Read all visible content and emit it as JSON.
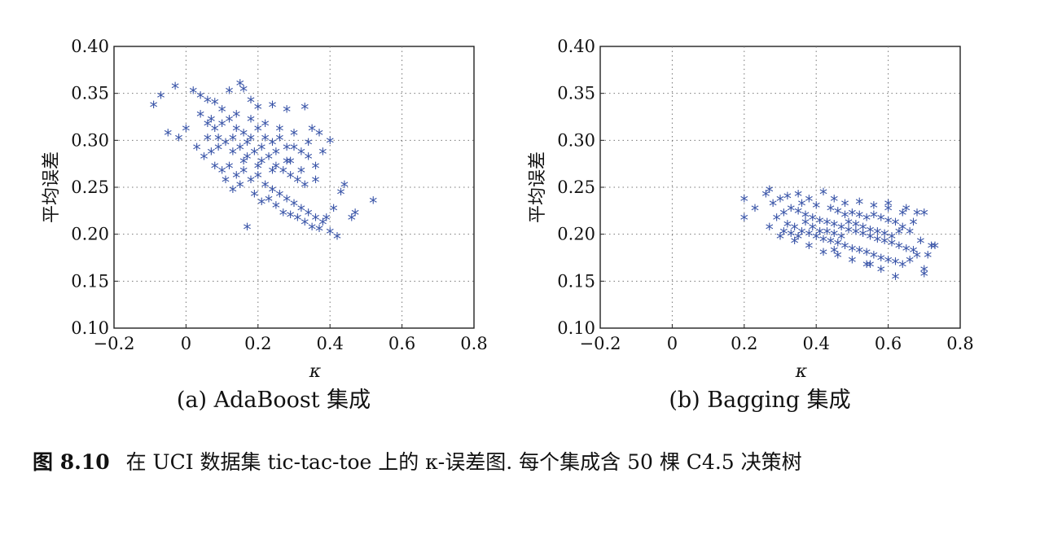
{
  "chart_data": [
    {
      "type": "scatter",
      "subcaption": "(a) AdaBoost 集成",
      "xlabel": "κ",
      "ylabel": "平均误差",
      "xlim": [
        -0.2,
        0.8
      ],
      "ylim": [
        0.1,
        0.4
      ],
      "xticks": [
        "−0.2",
        "0",
        "0.2",
        "0.4",
        "0.6",
        "0.8"
      ],
      "yticks": [
        "0.10",
        "0.15",
        "0.20",
        "0.25",
        "0.30",
        "0.35",
        "0.40"
      ],
      "grid": true,
      "marker": "*",
      "color": "#3a55a8",
      "points": [
        [
          -0.09,
          0.335
        ],
        [
          -0.07,
          0.345
        ],
        [
          -0.03,
          0.355
        ],
        [
          -0.02,
          0.3
        ],
        [
          -0.05,
          0.305
        ],
        [
          0.0,
          0.31
        ],
        [
          0.02,
          0.35
        ],
        [
          0.04,
          0.345
        ],
        [
          0.06,
          0.34
        ],
        [
          0.08,
          0.338
        ],
        [
          0.1,
          0.33
        ],
        [
          0.12,
          0.35
        ],
        [
          0.15,
          0.358
        ],
        [
          0.16,
          0.352
        ],
        [
          0.18,
          0.34
        ],
        [
          0.2,
          0.333
        ],
        [
          0.24,
          0.335
        ],
        [
          0.28,
          0.33
        ],
        [
          0.33,
          0.333
        ],
        [
          0.35,
          0.31
        ],
        [
          0.37,
          0.305
        ],
        [
          0.4,
          0.297
        ],
        [
          0.03,
          0.29
        ],
        [
          0.06,
          0.3
        ],
        [
          0.08,
          0.31
        ],
        [
          0.1,
          0.315
        ],
        [
          0.12,
          0.32
        ],
        [
          0.14,
          0.31
        ],
        [
          0.16,
          0.305
        ],
        [
          0.18,
          0.3
        ],
        [
          0.2,
          0.31
        ],
        [
          0.22,
          0.3
        ],
        [
          0.24,
          0.295
        ],
        [
          0.26,
          0.3
        ],
        [
          0.28,
          0.29
        ],
        [
          0.3,
          0.29
        ],
        [
          0.32,
          0.285
        ],
        [
          0.34,
          0.28
        ],
        [
          0.36,
          0.27
        ],
        [
          0.05,
          0.28
        ],
        [
          0.07,
          0.285
        ],
        [
          0.09,
          0.29
        ],
        [
          0.11,
          0.295
        ],
        [
          0.13,
          0.285
        ],
        [
          0.15,
          0.29
        ],
        [
          0.17,
          0.28
        ],
        [
          0.19,
          0.285
        ],
        [
          0.21,
          0.275
        ],
        [
          0.23,
          0.28
        ],
        [
          0.25,
          0.27
        ],
        [
          0.27,
          0.265
        ],
        [
          0.29,
          0.26
        ],
        [
          0.31,
          0.255
        ],
        [
          0.33,
          0.25
        ],
        [
          0.08,
          0.27
        ],
        [
          0.1,
          0.265
        ],
        [
          0.12,
          0.27
        ],
        [
          0.14,
          0.26
        ],
        [
          0.16,
          0.265
        ],
        [
          0.18,
          0.255
        ],
        [
          0.2,
          0.26
        ],
        [
          0.22,
          0.25
        ],
        [
          0.24,
          0.245
        ],
        [
          0.26,
          0.24
        ],
        [
          0.28,
          0.235
        ],
        [
          0.3,
          0.23
        ],
        [
          0.32,
          0.225
        ],
        [
          0.34,
          0.22
        ],
        [
          0.36,
          0.215
        ],
        [
          0.38,
          0.21
        ],
        [
          0.4,
          0.2
        ],
        [
          0.42,
          0.195
        ],
        [
          0.44,
          0.25
        ],
        [
          0.46,
          0.215
        ],
        [
          0.47,
          0.22
        ],
        [
          0.52,
          0.233
        ],
        [
          0.17,
          0.205
        ],
        [
          0.21,
          0.232
        ],
        [
          0.25,
          0.228
        ],
        [
          0.29,
          0.218
        ],
        [
          0.33,
          0.21
        ],
        [
          0.37,
          0.203
        ],
        [
          0.39,
          0.215
        ],
        [
          0.41,
          0.225
        ],
        [
          0.43,
          0.242
        ],
        [
          0.13,
          0.245
        ],
        [
          0.15,
          0.25
        ],
        [
          0.19,
          0.24
        ],
        [
          0.23,
          0.235
        ],
        [
          0.27,
          0.22
        ],
        [
          0.31,
          0.215
        ],
        [
          0.35,
          0.205
        ],
        [
          0.11,
          0.255
        ],
        [
          0.09,
          0.3
        ],
        [
          0.07,
          0.32
        ],
        [
          0.13,
          0.3
        ],
        [
          0.17,
          0.295
        ],
        [
          0.21,
          0.29
        ],
        [
          0.25,
          0.285
        ],
        [
          0.29,
          0.275
        ],
        [
          0.04,
          0.325
        ],
        [
          0.06,
          0.315
        ],
        [
          0.14,
          0.325
        ],
        [
          0.18,
          0.32
        ],
        [
          0.22,
          0.315
        ],
        [
          0.26,
          0.31
        ],
        [
          0.3,
          0.305
        ],
        [
          0.34,
          0.295
        ],
        [
          0.38,
          0.285
        ],
        [
          0.36,
          0.255
        ],
        [
          0.32,
          0.265
        ],
        [
          0.28,
          0.275
        ],
        [
          0.24,
          0.265
        ],
        [
          0.2,
          0.27
        ],
        [
          0.16,
          0.275
        ]
      ]
    },
    {
      "type": "scatter",
      "subcaption": "(b) Bagging 集成",
      "xlabel": "κ",
      "ylabel": "平均误差",
      "xlim": [
        -0.2,
        0.8
      ],
      "ylim": [
        0.1,
        0.4
      ],
      "xticks": [
        "−0.2",
        "0",
        "0.2",
        "0.4",
        "0.6",
        "0.8"
      ],
      "yticks": [
        "0.10",
        "0.15",
        "0.20",
        "0.25",
        "0.30",
        "0.35",
        "0.40"
      ],
      "grid": true,
      "marker": "*",
      "color": "#3a55a8",
      "points": [
        [
          0.2,
          0.235
        ],
        [
          0.2,
          0.215
        ],
        [
          0.23,
          0.225
        ],
        [
          0.27,
          0.245
        ],
        [
          0.28,
          0.23
        ],
        [
          0.3,
          0.235
        ],
        [
          0.32,
          0.238
        ],
        [
          0.35,
          0.24
        ],
        [
          0.38,
          0.235
        ],
        [
          0.42,
          0.242
        ],
        [
          0.45,
          0.235
        ],
        [
          0.48,
          0.23
        ],
        [
          0.52,
          0.232
        ],
        [
          0.56,
          0.228
        ],
        [
          0.6,
          0.225
        ],
        [
          0.64,
          0.22
        ],
        [
          0.68,
          0.22
        ],
        [
          0.7,
          0.22
        ],
        [
          0.72,
          0.185
        ],
        [
          0.71,
          0.175
        ],
        [
          0.7,
          0.16
        ],
        [
          0.7,
          0.155
        ],
        [
          0.62,
          0.152
        ],
        [
          0.58,
          0.16
        ],
        [
          0.54,
          0.165
        ],
        [
          0.5,
          0.17
        ],
        [
          0.46,
          0.175
        ],
        [
          0.42,
          0.178
        ],
        [
          0.38,
          0.185
        ],
        [
          0.34,
          0.19
        ],
        [
          0.3,
          0.195
        ],
        [
          0.27,
          0.205
        ],
        [
          0.29,
          0.215
        ],
        [
          0.31,
          0.22
        ],
        [
          0.33,
          0.225
        ],
        [
          0.35,
          0.222
        ],
        [
          0.37,
          0.218
        ],
        [
          0.39,
          0.215
        ],
        [
          0.41,
          0.212
        ],
        [
          0.43,
          0.21
        ],
        [
          0.45,
          0.208
        ],
        [
          0.47,
          0.205
        ],
        [
          0.49,
          0.202
        ],
        [
          0.51,
          0.2
        ],
        [
          0.53,
          0.198
        ],
        [
          0.55,
          0.195
        ],
        [
          0.57,
          0.192
        ],
        [
          0.59,
          0.19
        ],
        [
          0.61,
          0.188
        ],
        [
          0.63,
          0.185
        ],
        [
          0.65,
          0.182
        ],
        [
          0.67,
          0.18
        ],
        [
          0.66,
          0.2
        ],
        [
          0.64,
          0.205
        ],
        [
          0.62,
          0.21
        ],
        [
          0.6,
          0.212
        ],
        [
          0.58,
          0.215
        ],
        [
          0.56,
          0.218
        ],
        [
          0.54,
          0.215
        ],
        [
          0.52,
          0.218
        ],
        [
          0.5,
          0.22
        ],
        [
          0.48,
          0.218
        ],
        [
          0.46,
          0.222
        ],
        [
          0.44,
          0.225
        ],
        [
          0.4,
          0.228
        ],
        [
          0.36,
          0.23
        ],
        [
          0.32,
          0.208
        ],
        [
          0.34,
          0.205
        ],
        [
          0.36,
          0.2
        ],
        [
          0.38,
          0.198
        ],
        [
          0.4,
          0.195
        ],
        [
          0.42,
          0.192
        ],
        [
          0.44,
          0.19
        ],
        [
          0.46,
          0.188
        ],
        [
          0.48,
          0.185
        ],
        [
          0.5,
          0.182
        ],
        [
          0.52,
          0.18
        ],
        [
          0.54,
          0.178
        ],
        [
          0.56,
          0.175
        ],
        [
          0.58,
          0.172
        ],
        [
          0.6,
          0.17
        ],
        [
          0.62,
          0.168
        ],
        [
          0.64,
          0.165
        ],
        [
          0.66,
          0.17
        ],
        [
          0.68,
          0.175
        ],
        [
          0.69,
          0.19
        ],
        [
          0.67,
          0.21
        ],
        [
          0.65,
          0.225
        ],
        [
          0.37,
          0.21
        ],
        [
          0.39,
          0.205
        ],
        [
          0.41,
          0.2
        ],
        [
          0.43,
          0.2
        ],
        [
          0.45,
          0.198
        ],
        [
          0.47,
          0.195
        ],
        [
          0.49,
          0.21
        ],
        [
          0.51,
          0.208
        ],
        [
          0.53,
          0.205
        ],
        [
          0.55,
          0.202
        ],
        [
          0.57,
          0.2
        ],
        [
          0.59,
          0.198
        ],
        [
          0.61,
          0.195
        ],
        [
          0.63,
          0.2
        ],
        [
          0.31,
          0.2
        ],
        [
          0.33,
          0.198
        ],
        [
          0.35,
          0.195
        ],
        [
          0.6,
          0.23
        ],
        [
          0.73,
          0.185
        ],
        [
          0.26,
          0.24
        ],
        [
          0.55,
          0.165
        ],
        [
          0.45,
          0.18
        ]
      ]
    }
  ],
  "caption": {
    "number": "图 8.10",
    "text": "在 UCI 数据集 tic-tac-toe 上的 κ-误差图. 每个集成含 50 棵 C4.5 决策树"
  }
}
